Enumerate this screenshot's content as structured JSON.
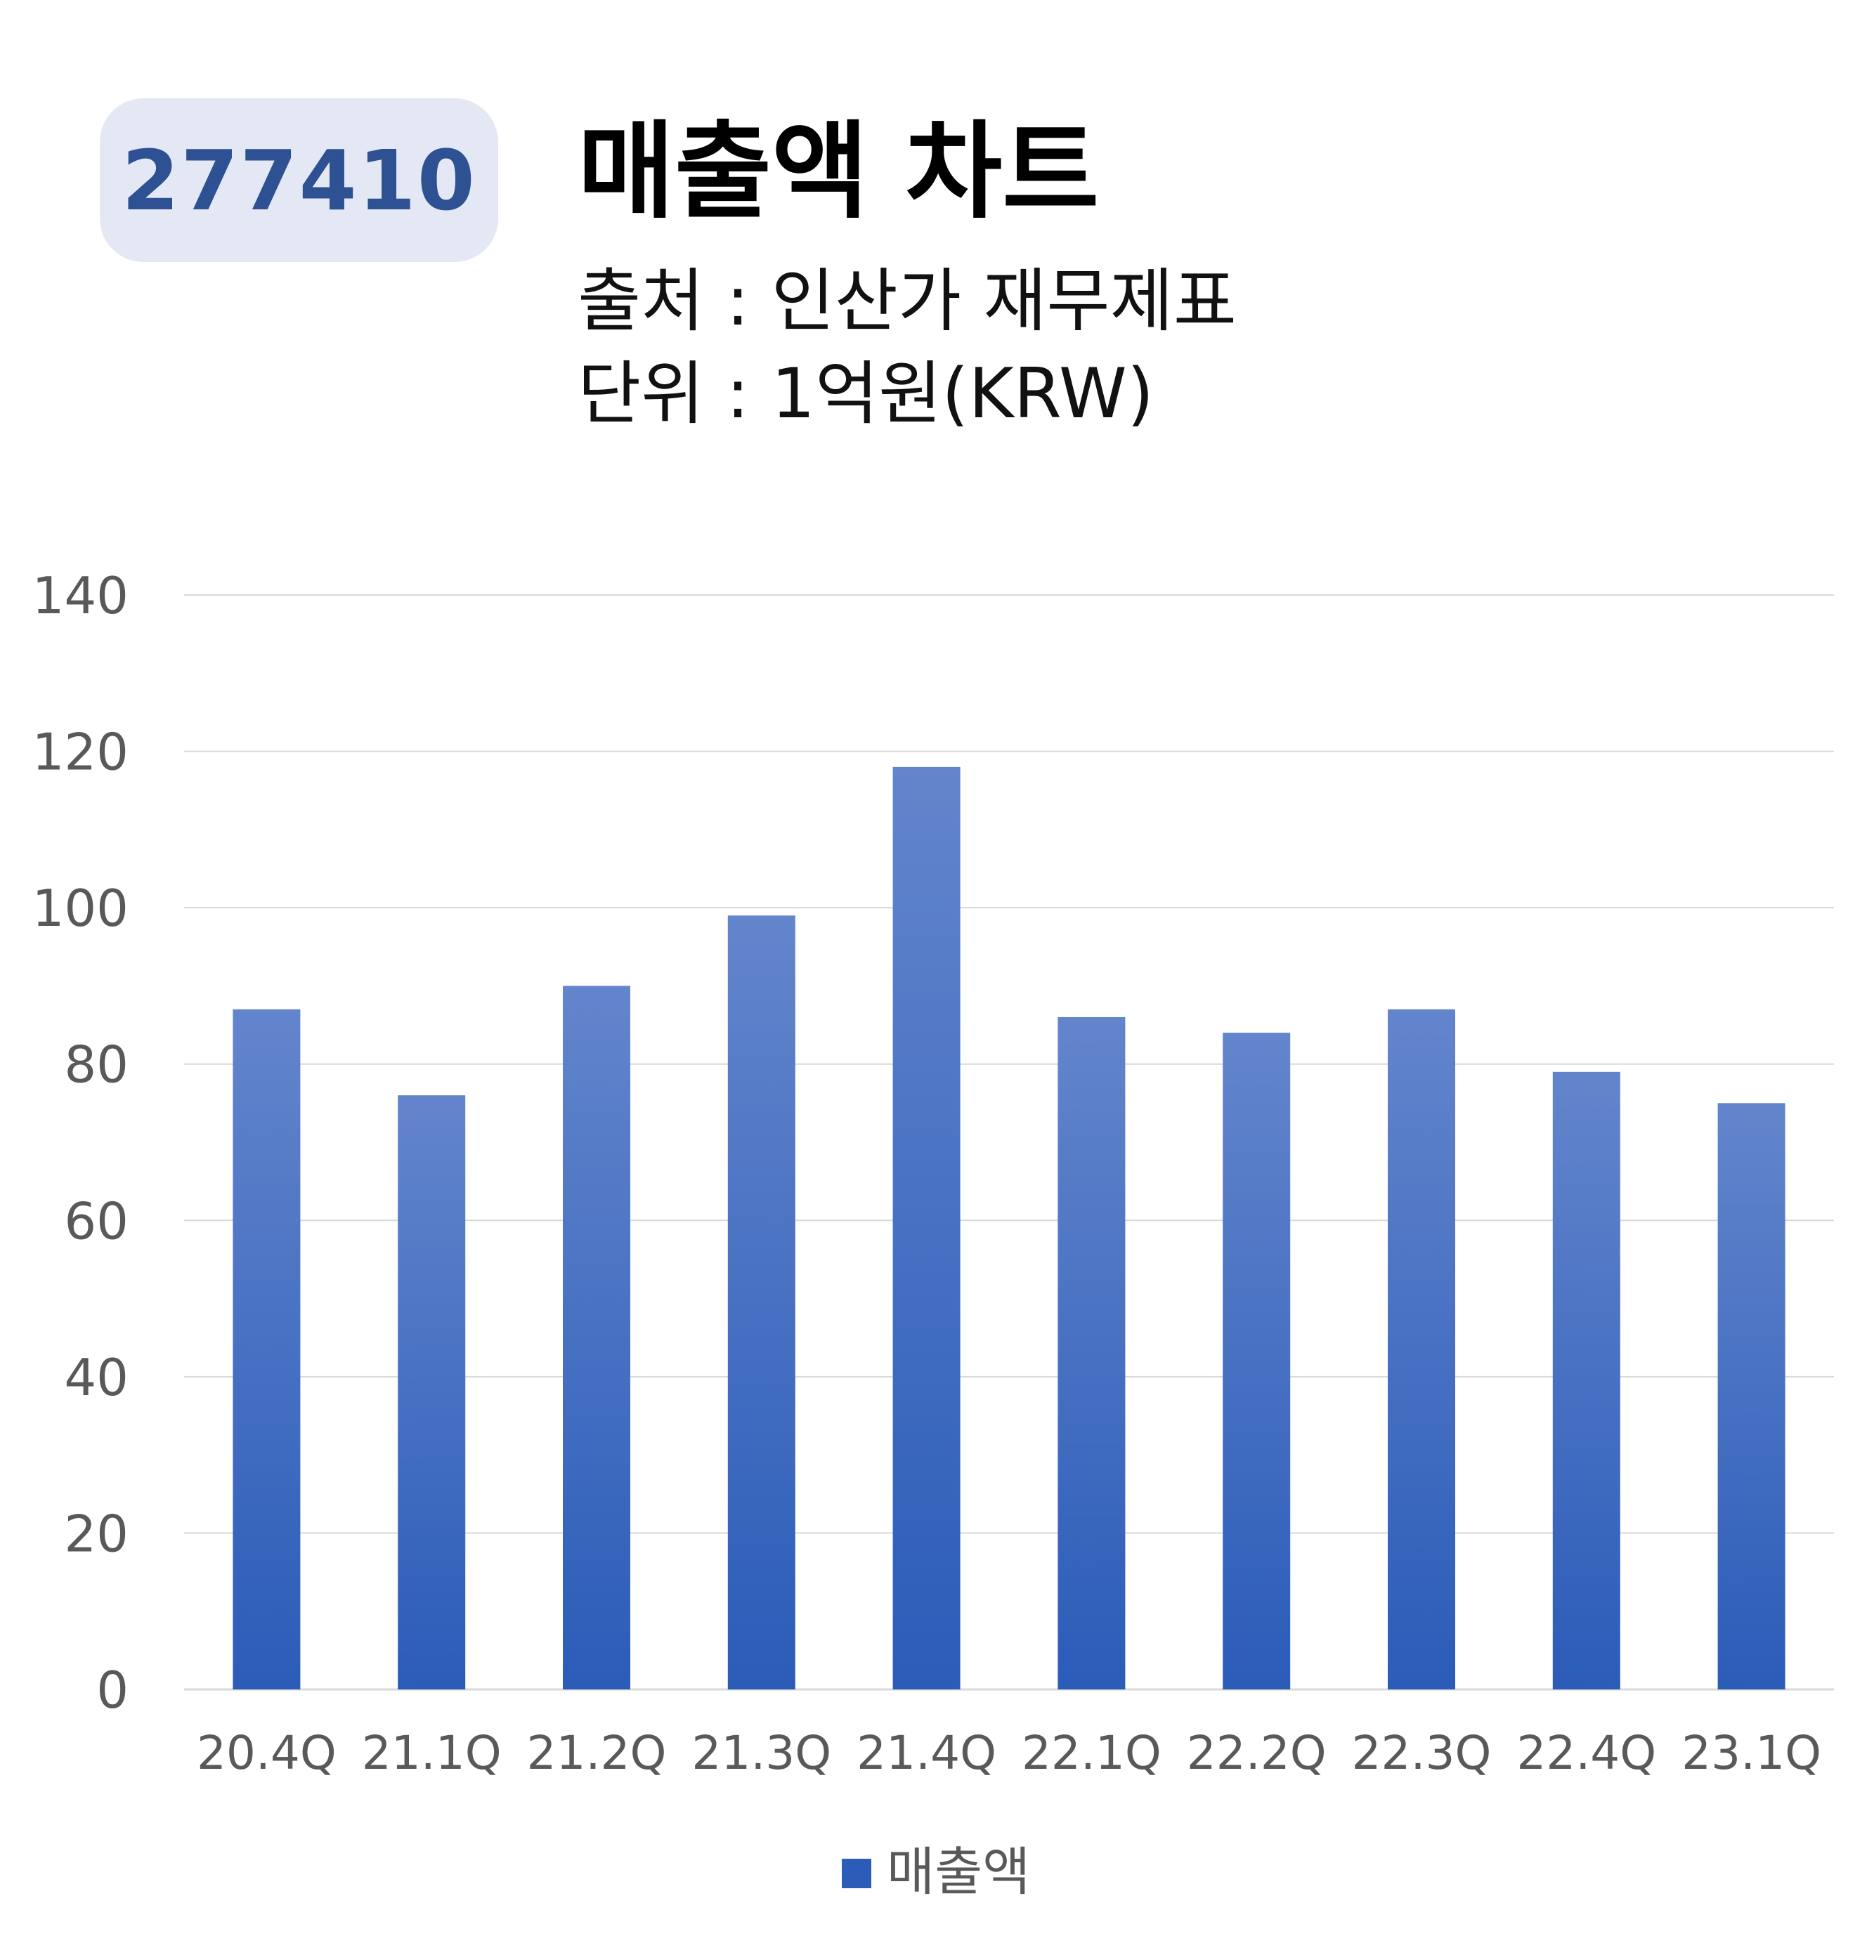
{
  "badge": {
    "code": "277410"
  },
  "header": {
    "title": "매출액 차트",
    "source": "출처 : 인산가 재무제표",
    "unit": "단위 : 1억원(KRW)"
  },
  "colors": {
    "bar_top": "#6385cc",
    "bar_bottom": "#2b5cb8",
    "grid": "#d9d9d9",
    "axis_text": "#595959",
    "badge_bg": "#e3e8f4",
    "badge_text": "#2e5193"
  },
  "chart_data": {
    "type": "bar",
    "categories": [
      "20.4Q",
      "21.1Q",
      "21.2Q",
      "21.3Q",
      "21.4Q",
      "22.1Q",
      "22.2Q",
      "22.3Q",
      "22.4Q",
      "23.1Q"
    ],
    "series": [
      {
        "name": "매출액",
        "values": [
          87,
          76,
          90,
          99,
          118,
          86,
          84,
          87,
          79,
          75
        ]
      }
    ],
    "yticks": [
      "0",
      "20",
      "40",
      "60",
      "80",
      "100",
      "120",
      "140"
    ],
    "ylim": [
      0,
      140
    ],
    "grid": true,
    "legend": "bottom-center"
  }
}
